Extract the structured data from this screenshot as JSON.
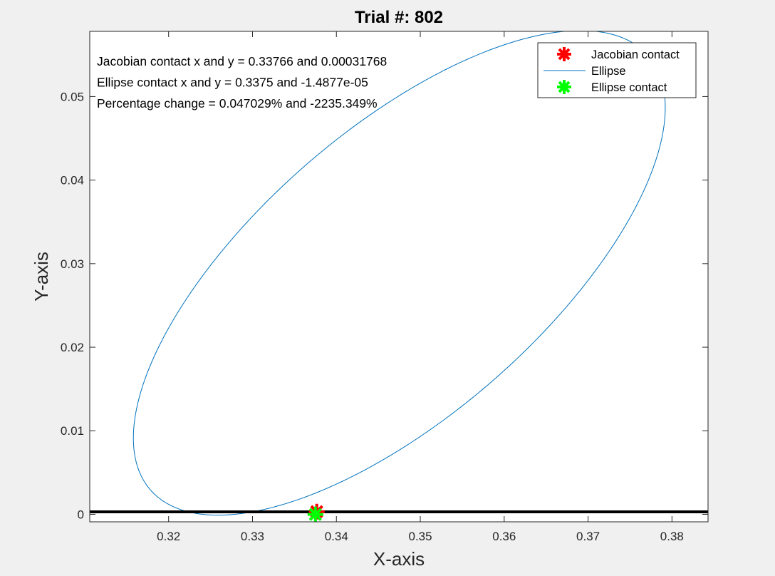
{
  "chart_data": {
    "type": "scatter",
    "title": "Trial #: 802",
    "xlabel": "X-axis",
    "ylabel": "Y-axis",
    "xlim": [
      0.3106,
      0.3843
    ],
    "ylim": [
      -0.0009,
      0.0578
    ],
    "x_ticks": [
      0.32,
      0.33,
      0.34,
      0.35,
      0.36,
      0.37,
      0.38
    ],
    "x_tick_labels": [
      "0.32",
      "0.33",
      "0.34",
      "0.35",
      "0.36",
      "0.37",
      "0.38"
    ],
    "y_ticks": [
      0,
      0.01,
      0.02,
      0.03,
      0.04,
      0.05
    ],
    "y_tick_labels": [
      "0",
      "0.01",
      "0.02",
      "0.03",
      "0.04",
      "0.05"
    ],
    "grid": false,
    "legend_position": "top-right",
    "annotations": [
      "Jacobian contact x and y = 0.33766 and 0.00031768",
      "Ellipse contact x and y = 0.3375 and -1.4877e-05",
      "Percentage change = 0.047029% and -2235.349%"
    ],
    "series": [
      {
        "name": "Jacobian contact",
        "kind": "marker",
        "marker": "asterisk",
        "color": "#ff0000",
        "x": [
          0.33766
        ],
        "y": [
          0.00031768
        ]
      },
      {
        "name": "Ellipse",
        "kind": "line",
        "color": "#0072bd",
        "ellipse": {
          "center_x": 0.3475,
          "center_y": 0.0289,
          "semi_major": 0.0399,
          "semi_minor": 0.0173,
          "rotation_deg": 47.6,
          "x_min": 0.3158,
          "x_max": 0.3792,
          "y_min": -0.0001,
          "y_max": 0.0579
        }
      },
      {
        "name": "Ellipse contact",
        "kind": "marker",
        "marker": "asterisk",
        "color": "#00ff00",
        "x": [
          0.3375
        ],
        "y": [
          -1.4877e-05
        ]
      },
      {
        "name": "",
        "kind": "line",
        "color": "#000000",
        "x": [
          0.3106,
          0.3843
        ],
        "y": [
          0.0003,
          0.0003
        ]
      }
    ]
  }
}
